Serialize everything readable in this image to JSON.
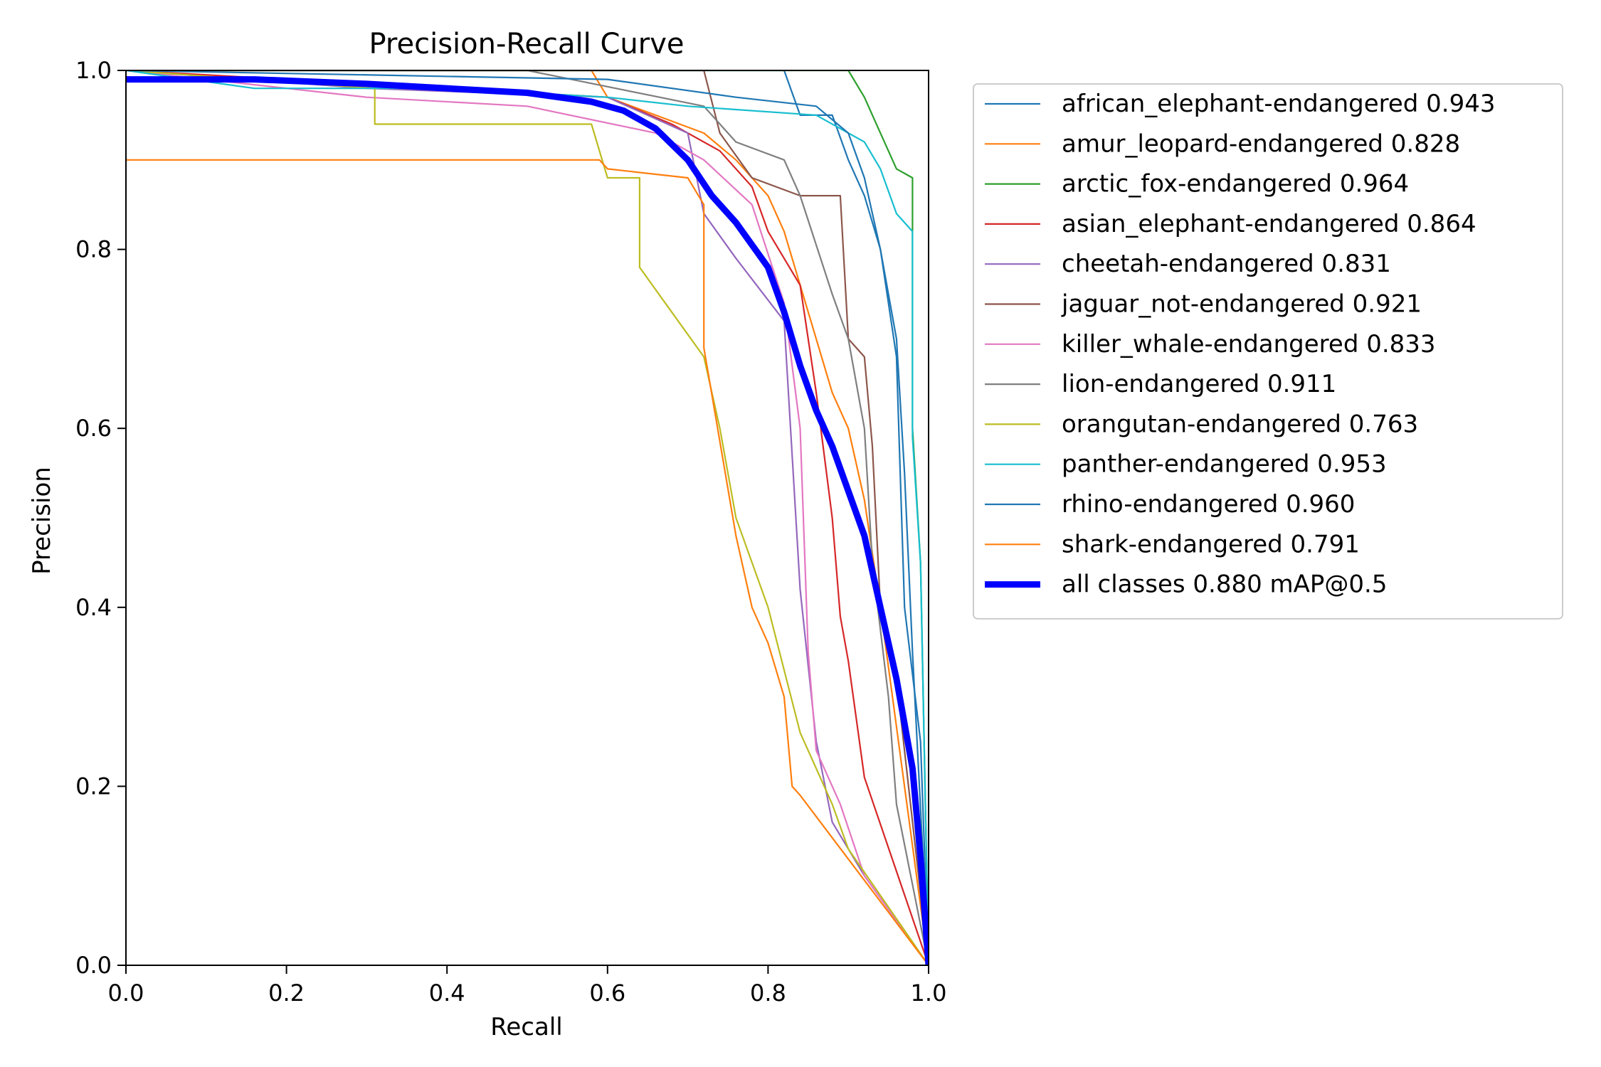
{
  "chart_data": {
    "type": "line",
    "title": "Precision-Recall Curve",
    "xlabel": "Recall",
    "ylabel": "Precision",
    "xlim": [
      0,
      1
    ],
    "ylim": [
      0,
      1
    ],
    "xticks": [
      "0.0",
      "0.2",
      "0.4",
      "0.6",
      "0.8",
      "1.0"
    ],
    "yticks": [
      "0.0",
      "0.2",
      "0.4",
      "0.6",
      "0.8",
      "1.0"
    ],
    "grid": false,
    "legend_position": "outside-right",
    "series": [
      {
        "name": "african_elephant-endangered 0.943",
        "color": "#1f77b4",
        "width": "thin",
        "points": [
          [
            0,
            1
          ],
          [
            0.82,
            1
          ],
          [
            0.84,
            0.95
          ],
          [
            0.88,
            0.95
          ],
          [
            0.9,
            0.9
          ],
          [
            0.92,
            0.86
          ],
          [
            0.94,
            0.8
          ],
          [
            0.96,
            0.7
          ],
          [
            0.97,
            0.55
          ],
          [
            0.98,
            0.35
          ],
          [
            1,
            0
          ]
        ]
      },
      {
        "name": "amur_leopard-endangered 0.828",
        "color": "#ff7f0e",
        "width": "thin",
        "points": [
          [
            0,
            1
          ],
          [
            0.58,
            1
          ],
          [
            0.6,
            0.97
          ],
          [
            0.66,
            0.95
          ],
          [
            0.72,
            0.93
          ],
          [
            0.76,
            0.9
          ],
          [
            0.8,
            0.86
          ],
          [
            0.82,
            0.82
          ],
          [
            0.86,
            0.7
          ],
          [
            0.88,
            0.64
          ],
          [
            0.9,
            0.6
          ],
          [
            0.92,
            0.52
          ],
          [
            0.94,
            0.4
          ],
          [
            1,
            0
          ]
        ]
      },
      {
        "name": "arctic_fox-endangered 0.964",
        "color": "#2ca02c",
        "width": "thin",
        "points": [
          [
            0,
            1
          ],
          [
            0.9,
            1
          ],
          [
            0.92,
            0.97
          ],
          [
            0.94,
            0.93
          ],
          [
            0.96,
            0.89
          ],
          [
            0.98,
            0.88
          ],
          [
            0.98,
            0.6
          ],
          [
            0.99,
            0.45
          ],
          [
            1,
            0
          ]
        ]
      },
      {
        "name": "asian_elephant-endangered 0.864",
        "color": "#d62728",
        "width": "thin",
        "points": [
          [
            0,
            1
          ],
          [
            0.6,
            0.97
          ],
          [
            0.68,
            0.94
          ],
          [
            0.74,
            0.91
          ],
          [
            0.78,
            0.87
          ],
          [
            0.8,
            0.82
          ],
          [
            0.84,
            0.76
          ],
          [
            0.86,
            0.64
          ],
          [
            0.88,
            0.5
          ],
          [
            0.89,
            0.39
          ],
          [
            0.9,
            0.34
          ],
          [
            0.92,
            0.21
          ],
          [
            1,
            0
          ]
        ]
      },
      {
        "name": "cheetah-endangered 0.831",
        "color": "#9467bd",
        "width": "thin",
        "points": [
          [
            0,
            1
          ],
          [
            0.3,
            0.98
          ],
          [
            0.6,
            0.97
          ],
          [
            0.7,
            0.93
          ],
          [
            0.72,
            0.84
          ],
          [
            0.76,
            0.79
          ],
          [
            0.82,
            0.72
          ],
          [
            0.84,
            0.42
          ],
          [
            0.86,
            0.25
          ],
          [
            0.88,
            0.16
          ],
          [
            0.92,
            0.1
          ],
          [
            1,
            0
          ]
        ]
      },
      {
        "name": "jaguar_not-endangered 0.921",
        "color": "#8c564b",
        "width": "thin",
        "points": [
          [
            0,
            1
          ],
          [
            0.72,
            1
          ],
          [
            0.74,
            0.93
          ],
          [
            0.78,
            0.88
          ],
          [
            0.84,
            0.86
          ],
          [
            0.89,
            0.86
          ],
          [
            0.9,
            0.7
          ],
          [
            0.92,
            0.68
          ],
          [
            0.93,
            0.58
          ],
          [
            0.94,
            0.4
          ],
          [
            0.96,
            0.32
          ],
          [
            1,
            0
          ]
        ]
      },
      {
        "name": "killer_whale-endangered 0.833",
        "color": "#e377c2",
        "width": "thin",
        "points": [
          [
            0,
            1
          ],
          [
            0.3,
            0.97
          ],
          [
            0.5,
            0.96
          ],
          [
            0.66,
            0.93
          ],
          [
            0.72,
            0.9
          ],
          [
            0.78,
            0.85
          ],
          [
            0.82,
            0.74
          ],
          [
            0.84,
            0.6
          ],
          [
            0.85,
            0.35
          ],
          [
            0.86,
            0.24
          ],
          [
            0.89,
            0.18
          ],
          [
            0.92,
            0.1
          ],
          [
            1,
            0
          ]
        ]
      },
      {
        "name": "lion-endangered 0.911",
        "color": "#7f7f7f",
        "width": "thin",
        "points": [
          [
            0,
            1
          ],
          [
            0.5,
            1
          ],
          [
            0.72,
            0.96
          ],
          [
            0.76,
            0.92
          ],
          [
            0.82,
            0.9
          ],
          [
            0.84,
            0.86
          ],
          [
            0.88,
            0.75
          ],
          [
            0.9,
            0.7
          ],
          [
            0.92,
            0.6
          ],
          [
            0.93,
            0.45
          ],
          [
            0.95,
            0.3
          ],
          [
            0.96,
            0.18
          ],
          [
            1,
            0
          ]
        ]
      },
      {
        "name": "orangutan-endangered 0.763",
        "color": "#bcbd22",
        "width": "thin",
        "points": [
          [
            0,
            1
          ],
          [
            0.31,
            0.98
          ],
          [
            0.31,
            0.94
          ],
          [
            0.58,
            0.94
          ],
          [
            0.6,
            0.88
          ],
          [
            0.64,
            0.88
          ],
          [
            0.64,
            0.78
          ],
          [
            0.68,
            0.73
          ],
          [
            0.72,
            0.68
          ],
          [
            0.74,
            0.6
          ],
          [
            0.76,
            0.5
          ],
          [
            0.8,
            0.4
          ],
          [
            0.84,
            0.26
          ],
          [
            0.88,
            0.18
          ],
          [
            0.9,
            0.13
          ],
          [
            1,
            0
          ]
        ]
      },
      {
        "name": "panther-endangered 0.953",
        "color": "#17becf",
        "width": "thin",
        "points": [
          [
            0,
            1
          ],
          [
            0.16,
            0.98
          ],
          [
            0.4,
            0.98
          ],
          [
            0.6,
            0.97
          ],
          [
            0.7,
            0.96
          ],
          [
            0.86,
            0.95
          ],
          [
            0.92,
            0.92
          ],
          [
            0.94,
            0.89
          ],
          [
            0.96,
            0.84
          ],
          [
            0.98,
            0.82
          ],
          [
            0.98,
            0.59
          ],
          [
            0.99,
            0.45
          ],
          [
            1,
            0
          ]
        ]
      },
      {
        "name": "rhino-endangered 0.960",
        "color": "#1f77b4",
        "width": "thin",
        "points": [
          [
            0,
            1
          ],
          [
            0.6,
            0.99
          ],
          [
            0.76,
            0.97
          ],
          [
            0.86,
            0.96
          ],
          [
            0.9,
            0.93
          ],
          [
            0.92,
            0.88
          ],
          [
            0.94,
            0.8
          ],
          [
            0.96,
            0.68
          ],
          [
            0.97,
            0.4
          ],
          [
            0.99,
            0.25
          ],
          [
            1,
            0
          ]
        ]
      },
      {
        "name": "shark-endangered 0.791",
        "color": "#ff7f0e",
        "width": "thin",
        "points": [
          [
            0,
            0.9
          ],
          [
            0.59,
            0.9
          ],
          [
            0.6,
            0.89
          ],
          [
            0.7,
            0.88
          ],
          [
            0.72,
            0.85
          ],
          [
            0.72,
            0.69
          ],
          [
            0.76,
            0.48
          ],
          [
            0.78,
            0.4
          ],
          [
            0.8,
            0.36
          ],
          [
            0.82,
            0.3
          ],
          [
            0.83,
            0.2
          ],
          [
            0.84,
            0.19
          ],
          [
            1,
            0
          ]
        ]
      },
      {
        "name": "all classes 0.880 mAP@0.5",
        "color": "#0000ff",
        "width": "thick",
        "points": [
          [
            0,
            0.99
          ],
          [
            0.16,
            0.99
          ],
          [
            0.3,
            0.985
          ],
          [
            0.5,
            0.975
          ],
          [
            0.58,
            0.965
          ],
          [
            0.62,
            0.955
          ],
          [
            0.66,
            0.935
          ],
          [
            0.7,
            0.9
          ],
          [
            0.73,
            0.86
          ],
          [
            0.76,
            0.83
          ],
          [
            0.8,
            0.78
          ],
          [
            0.82,
            0.73
          ],
          [
            0.84,
            0.67
          ],
          [
            0.86,
            0.62
          ],
          [
            0.88,
            0.58
          ],
          [
            0.9,
            0.53
          ],
          [
            0.92,
            0.48
          ],
          [
            0.94,
            0.4
          ],
          [
            0.96,
            0.32
          ],
          [
            0.98,
            0.22
          ],
          [
            0.99,
            0.12
          ],
          [
            1,
            0
          ]
        ]
      }
    ]
  }
}
